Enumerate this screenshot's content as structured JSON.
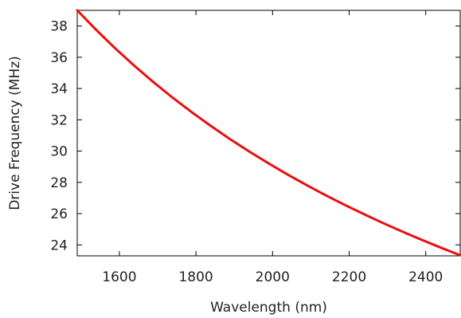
{
  "chart_data": {
    "type": "line",
    "title": "",
    "xlabel": "Wavelength (nm)",
    "ylabel": "Drive Frequency (MHz)",
    "xlim": [
      1490,
      2490
    ],
    "ylim": [
      23.3,
      39.0
    ],
    "xticks": [
      1600,
      1800,
      2000,
      2200,
      2400
    ],
    "yticks": [
      24,
      26,
      28,
      30,
      32,
      34,
      36,
      38
    ],
    "grid": false,
    "legend": "none",
    "series": [
      {
        "color": "#e8100f",
        "x": [
          1490,
          1540,
          1590,
          1640,
          1690,
          1740,
          1790,
          1840,
          1890,
          1940,
          1990,
          2040,
          2090,
          2140,
          2190,
          2240,
          2290,
          2340,
          2390,
          2440,
          2490
        ],
        "y": [
          39.0,
          37.74,
          36.55,
          35.44,
          34.39,
          33.4,
          32.47,
          31.59,
          30.75,
          29.96,
          29.21,
          28.49,
          27.81,
          27.16,
          26.54,
          25.95,
          25.38,
          24.84,
          24.32,
          23.82,
          23.34
        ]
      }
    ]
  }
}
